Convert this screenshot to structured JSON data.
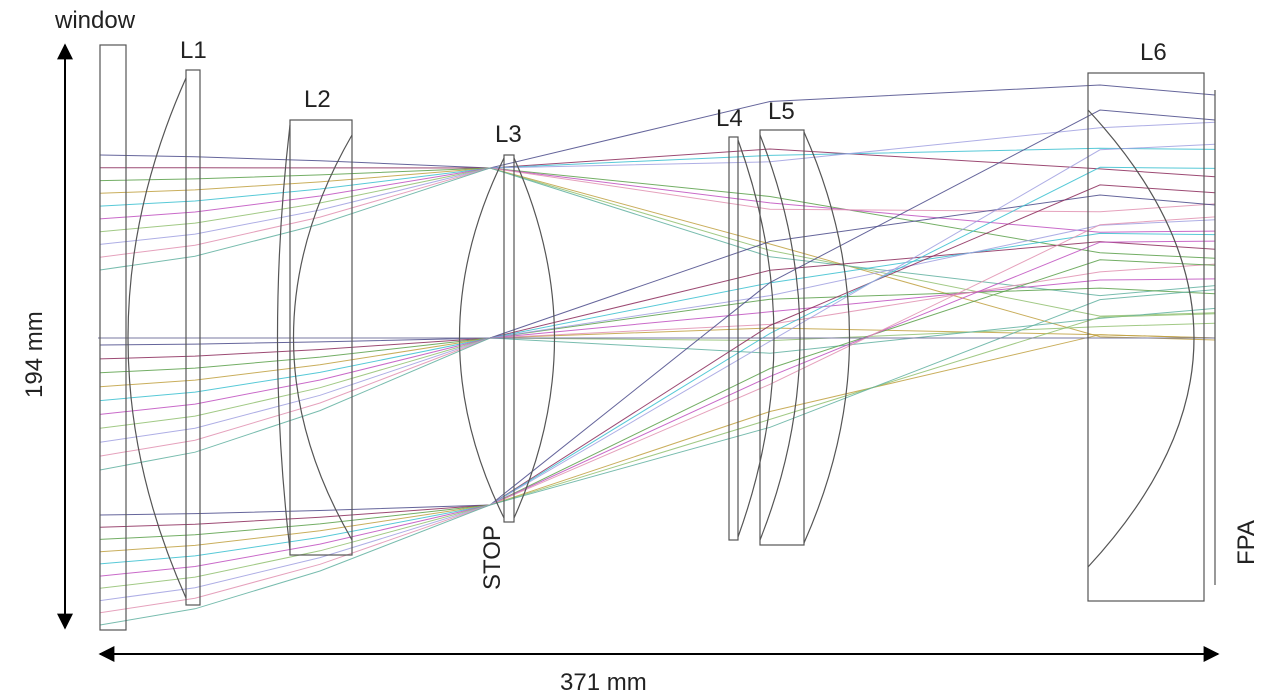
{
  "labels": {
    "window": "window",
    "l1": "L1",
    "l2": "L2",
    "l3": "L3",
    "l4": "L4",
    "l5": "L5",
    "l6": "L6",
    "stop": "STOP",
    "fpa": "FPA"
  },
  "dimensions": {
    "height": "194 mm",
    "length": "371 mm"
  },
  "ray_colors": [
    "#4a4a8a",
    "#8b2a5a",
    "#5aa04a",
    "#c0a040",
    "#3ac0d0",
    "#c050c0",
    "#90c070",
    "#a0a0e0",
    "#e090b0",
    "#60b0a0"
  ]
}
